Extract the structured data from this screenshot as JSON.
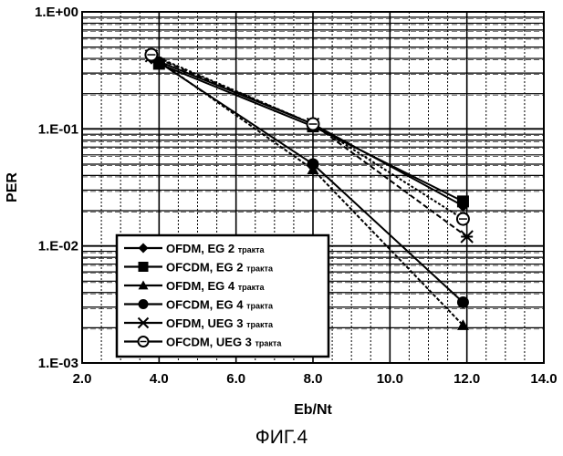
{
  "caption": "ФИГ.4",
  "chart_data": {
    "type": "line",
    "xlabel": "Eb/Nt",
    "ylabel": "PER",
    "xlim": [
      2.0,
      14.0
    ],
    "ylim": [
      0.001,
      1.0
    ],
    "yscale": "log",
    "grid": true,
    "legend_placement": "bottom-left",
    "x_tick_labels": [
      "2.0",
      "4.0",
      "6.0",
      "8.0",
      "10.0",
      "12.0",
      "14.0"
    ],
    "y_tick_labels": [
      "1.E-03",
      "1.E-02",
      "1.E-01",
      "1.E+00"
    ],
    "series": [
      {
        "name": "OFDM, EG 2",
        "name_suffix": "тракта",
        "marker": "diamond",
        "x": [
          3.8,
          8.0,
          11.9
        ],
        "y": [
          0.4,
          0.11,
          0.022
        ]
      },
      {
        "name": "OFCDM, EG 2",
        "name_suffix": "тракта",
        "marker": "square",
        "x": [
          4.0,
          8.0,
          11.9
        ],
        "y": [
          0.36,
          0.105,
          0.024
        ]
      },
      {
        "name": "OFDM, EG 4",
        "name_suffix": "тракта",
        "marker": "triangle",
        "x": [
          4.0,
          8.0,
          11.9
        ],
        "y": [
          0.38,
          0.045,
          0.0021
        ]
      },
      {
        "name": "OFCDM, EG 4",
        "name_suffix": "тракта",
        "marker": "circle",
        "x": [
          4.0,
          8.0,
          11.9
        ],
        "y": [
          0.37,
          0.05,
          0.0033
        ]
      },
      {
        "name": "OFDM, UEG 3",
        "name_suffix": "тракта",
        "marker": "x",
        "x": [
          3.8,
          8.0,
          12.0
        ],
        "y": [
          0.42,
          0.11,
          0.012
        ]
      },
      {
        "name": "OFCDM, UEG 3",
        "name_suffix": "тракта",
        "marker": "circle-open",
        "x": [
          3.8,
          8.0,
          11.9
        ],
        "y": [
          0.43,
          0.11,
          0.017
        ]
      }
    ]
  }
}
